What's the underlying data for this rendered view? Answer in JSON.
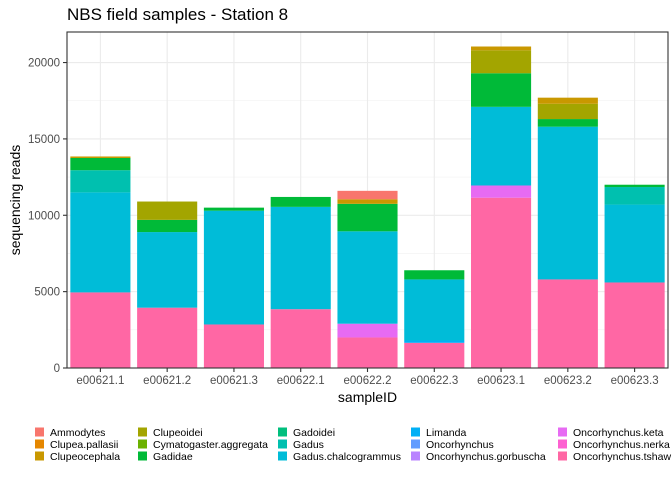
{
  "chart_data": {
    "type": "bar",
    "stacked": true,
    "title": "NBS field samples - Station 8",
    "xlabel": "sampleID",
    "ylabel": "sequencing reads",
    "ylim": [
      0,
      22000
    ],
    "yticks": [
      0,
      5000,
      10000,
      15000,
      20000
    ],
    "ytick_labels": [
      "0",
      "5000",
      "10000",
      "15000",
      "20000"
    ],
    "grid": true,
    "legend_position": "bottom",
    "categories": [
      "e00621.1",
      "e00621.2",
      "e00621.3",
      "e00622.1",
      "e00622.2",
      "e00622.3",
      "e00623.1",
      "e00623.2",
      "e00623.3"
    ],
    "series": [
      {
        "name": "Ammodytes",
        "color": "#F8766D",
        "values": [
          0,
          0,
          0,
          0,
          550,
          0,
          0,
          0,
          0
        ]
      },
      {
        "name": "Clupea.pallasii",
        "color": "#E58700",
        "values": [
          0,
          0,
          0,
          0,
          0,
          0,
          0,
          0,
          0
        ]
      },
      {
        "name": "Clupeocephala",
        "color": "#C99800",
        "values": [
          100,
          0,
          0,
          0,
          300,
          0,
          250,
          400,
          0
        ]
      },
      {
        "name": "Clupeoidei",
        "color": "#A3A500",
        "values": [
          0,
          1200,
          0,
          0,
          0,
          0,
          1500,
          1000,
          0
        ]
      },
      {
        "name": "Cymatogaster.aggregata",
        "color": "#6BB100",
        "values": [
          0,
          0,
          0,
          0,
          0,
          0,
          0,
          0,
          0
        ]
      },
      {
        "name": "Gadidae",
        "color": "#00BA38",
        "values": [
          800,
          800,
          200,
          650,
          1800,
          600,
          2200,
          500,
          150
        ]
      },
      {
        "name": "Gadoidei",
        "color": "#00BF7D",
        "values": [
          0,
          0,
          0,
          0,
          0,
          0,
          0,
          0,
          0
        ]
      },
      {
        "name": "Gadus",
        "color": "#00C0AF",
        "values": [
          1450,
          0,
          0,
          0,
          0,
          0,
          0,
          0,
          1150
        ]
      },
      {
        "name": "Gadus.chalcogrammus",
        "color": "#00BCD8",
        "values": [
          6550,
          4950,
          7450,
          6700,
          6050,
          4000,
          5150,
          10000,
          5100
        ]
      },
      {
        "name": "Limanda",
        "color": "#00B0F6",
        "values": [
          0,
          0,
          0,
          0,
          0,
          150,
          0,
          0,
          0
        ]
      },
      {
        "name": "Oncorhynchus",
        "color": "#619CFF",
        "values": [
          0,
          0,
          0,
          0,
          0,
          0,
          0,
          0,
          0
        ]
      },
      {
        "name": "Oncorhynchus.gorbuscha",
        "color": "#B983FF",
        "values": [
          0,
          0,
          0,
          0,
          0,
          0,
          0,
          0,
          0
        ]
      },
      {
        "name": "Oncorhynchus.keta",
        "color": "#E76BF3",
        "values": [
          0,
          0,
          0,
          0,
          900,
          0,
          800,
          0,
          0
        ]
      },
      {
        "name": "Oncorhynchus.nerka",
        "color": "#FD61D1",
        "values": [
          0,
          0,
          0,
          0,
          0,
          0,
          0,
          0,
          0
        ]
      },
      {
        "name": "Oncorhynchus.tshaw",
        "color": "#FF67A4",
        "values": [
          4950,
          3950,
          2850,
          3850,
          2000,
          1650,
          11150,
          5800,
          5600
        ]
      }
    ]
  }
}
